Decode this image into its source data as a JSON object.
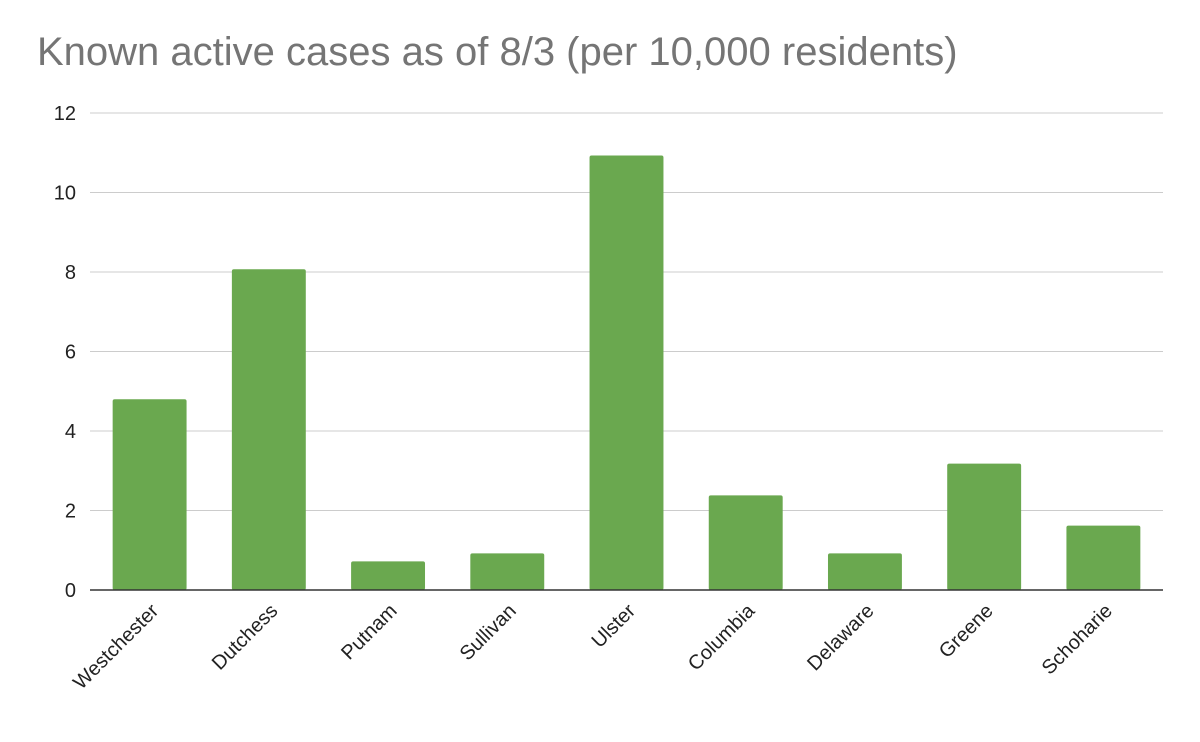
{
  "chart_data": {
    "type": "bar",
    "title": "Known active cases as of 8/3 (per 10,000 residents)",
    "xlabel": "",
    "ylabel": "",
    "categories": [
      "Westchester",
      "Dutchess",
      "Putnam",
      "Sullivan",
      "Ulster",
      "Columbia",
      "Delaware",
      "Greene",
      "Schoharie"
    ],
    "values": [
      4.8,
      8.07,
      0.72,
      0.92,
      10.93,
      2.38,
      0.92,
      3.18,
      1.62
    ],
    "ylim": [
      0,
      12
    ],
    "yticks": [
      "0",
      "2",
      "4",
      "6",
      "8",
      "10",
      "12"
    ],
    "grid": true,
    "legend": "none",
    "bar_color": "#6aa84f"
  }
}
